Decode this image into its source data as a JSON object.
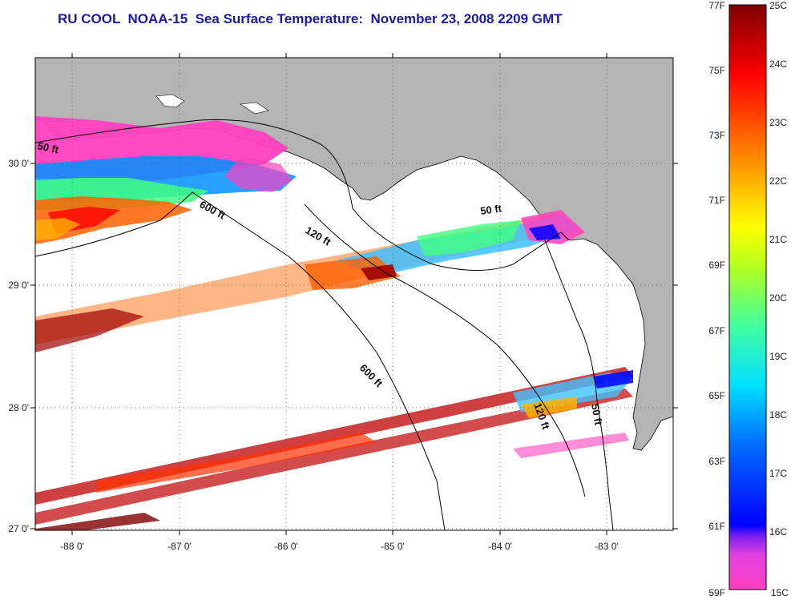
{
  "title": "RU COOL  NOAA-15  Sea Surface Temperature:  November 23, 2008 2209 GMT",
  "map": {
    "lon_labels": [
      "-88 0'",
      "-87 0'",
      "-86 0'",
      "-85 0'",
      "-84 0'",
      "-83 0'"
    ],
    "lat_labels": [
      "30 0'",
      "29 0'",
      "28 0'",
      "27 0'"
    ],
    "contour_labels": [
      "50 ft",
      "600 ft",
      "120 ft",
      "50 ft",
      "600 ft",
      "120 ft",
      "50 ft"
    ],
    "colors": {
      "land": "#b4b4b4",
      "water": "#ffffff",
      "frame": "#000000"
    }
  },
  "colorbar": {
    "fahrenheit": [
      "77F",
      "75F",
      "73F",
      "71F",
      "69F",
      "67F",
      "65F",
      "63F",
      "61F",
      "59F"
    ],
    "celsius": [
      "25C",
      "24C",
      "23C",
      "22C",
      "21C",
      "20C",
      "19C",
      "18C",
      "17C",
      "16C",
      "15C"
    ],
    "stops": [
      "#ff40c0",
      "#a020f0",
      "#0000ff",
      "#0080ff",
      "#00ffff",
      "#40ff80",
      "#c0ff00",
      "#ffff00",
      "#ffb000",
      "#ff6000",
      "#ff0000",
      "#800000"
    ]
  }
}
